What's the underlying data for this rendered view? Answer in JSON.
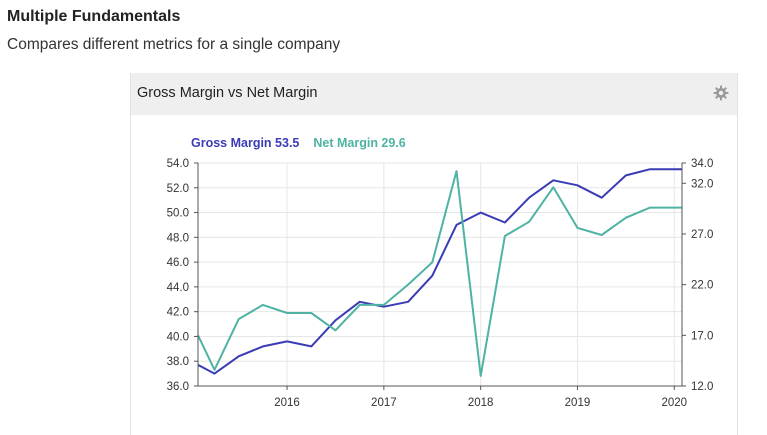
{
  "page": {
    "title": "Multiple Fundamentals",
    "subtitle": "Compares different metrics for a single company"
  },
  "widget": {
    "title": "Gross Margin vs Net Margin",
    "settings_icon": "gear-icon"
  },
  "chart_data": {
    "type": "line",
    "legend": [
      {
        "label": "Gross Margin",
        "value": "53.5",
        "color": "#3a3cb5"
      },
      {
        "label": "Net Margin",
        "value": "29.6",
        "color": "#4eb3a3"
      }
    ],
    "legend_position": "top-left",
    "grid": true,
    "x_ticks": [
      "2016",
      "2017",
      "2018",
      "2019",
      "2020"
    ],
    "left_axis": {
      "ylim": [
        36.0,
        54.0
      ],
      "ticks": [
        "54.0",
        "52.0",
        "50.0",
        "48.0",
        "46.0",
        "44.0",
        "42.0",
        "40.0",
        "38.0",
        "36.0"
      ]
    },
    "right_axis": {
      "ylim": [
        12.0,
        34.0
      ],
      "ticks": [
        "34.0",
        "32.0",
        "27.0",
        "22.0",
        "17.0",
        "12.0"
      ]
    },
    "series": [
      {
        "name": "Gross Margin",
        "axis": "left",
        "color": "#3a3cb5",
        "x": [
          2015.08,
          2015.25,
          2015.5,
          2015.75,
          2016.0,
          2016.25,
          2016.5,
          2016.75,
          2017.0,
          2017.25,
          2017.5,
          2017.75,
          2018.0,
          2018.25,
          2018.5,
          2018.75,
          2019.0,
          2019.25,
          2019.5,
          2019.75,
          2020.0,
          2020.08
        ],
        "values": [
          37.7,
          37.0,
          38.4,
          39.2,
          39.6,
          39.2,
          41.3,
          42.8,
          42.4,
          42.8,
          44.9,
          49.0,
          50.0,
          49.2,
          51.2,
          52.6,
          52.2,
          51.2,
          53.0,
          53.5,
          53.5,
          53.5
        ]
      },
      {
        "name": "Net Margin",
        "axis": "right",
        "color": "#4eb3a3",
        "x": [
          2015.08,
          2015.25,
          2015.5,
          2015.75,
          2016.0,
          2016.25,
          2016.5,
          2016.75,
          2017.0,
          2017.25,
          2017.5,
          2017.75,
          2018.0,
          2018.25,
          2018.5,
          2018.75,
          2019.0,
          2019.25,
          2019.5,
          2019.75,
          2020.0,
          2020.08
        ],
        "values": [
          17.0,
          13.6,
          18.6,
          20.0,
          19.2,
          19.2,
          17.5,
          20.0,
          20.0,
          22.0,
          24.2,
          33.2,
          13.0,
          26.8,
          28.2,
          31.6,
          27.6,
          26.9,
          28.6,
          29.6,
          29.6,
          29.6
        ]
      }
    ]
  }
}
